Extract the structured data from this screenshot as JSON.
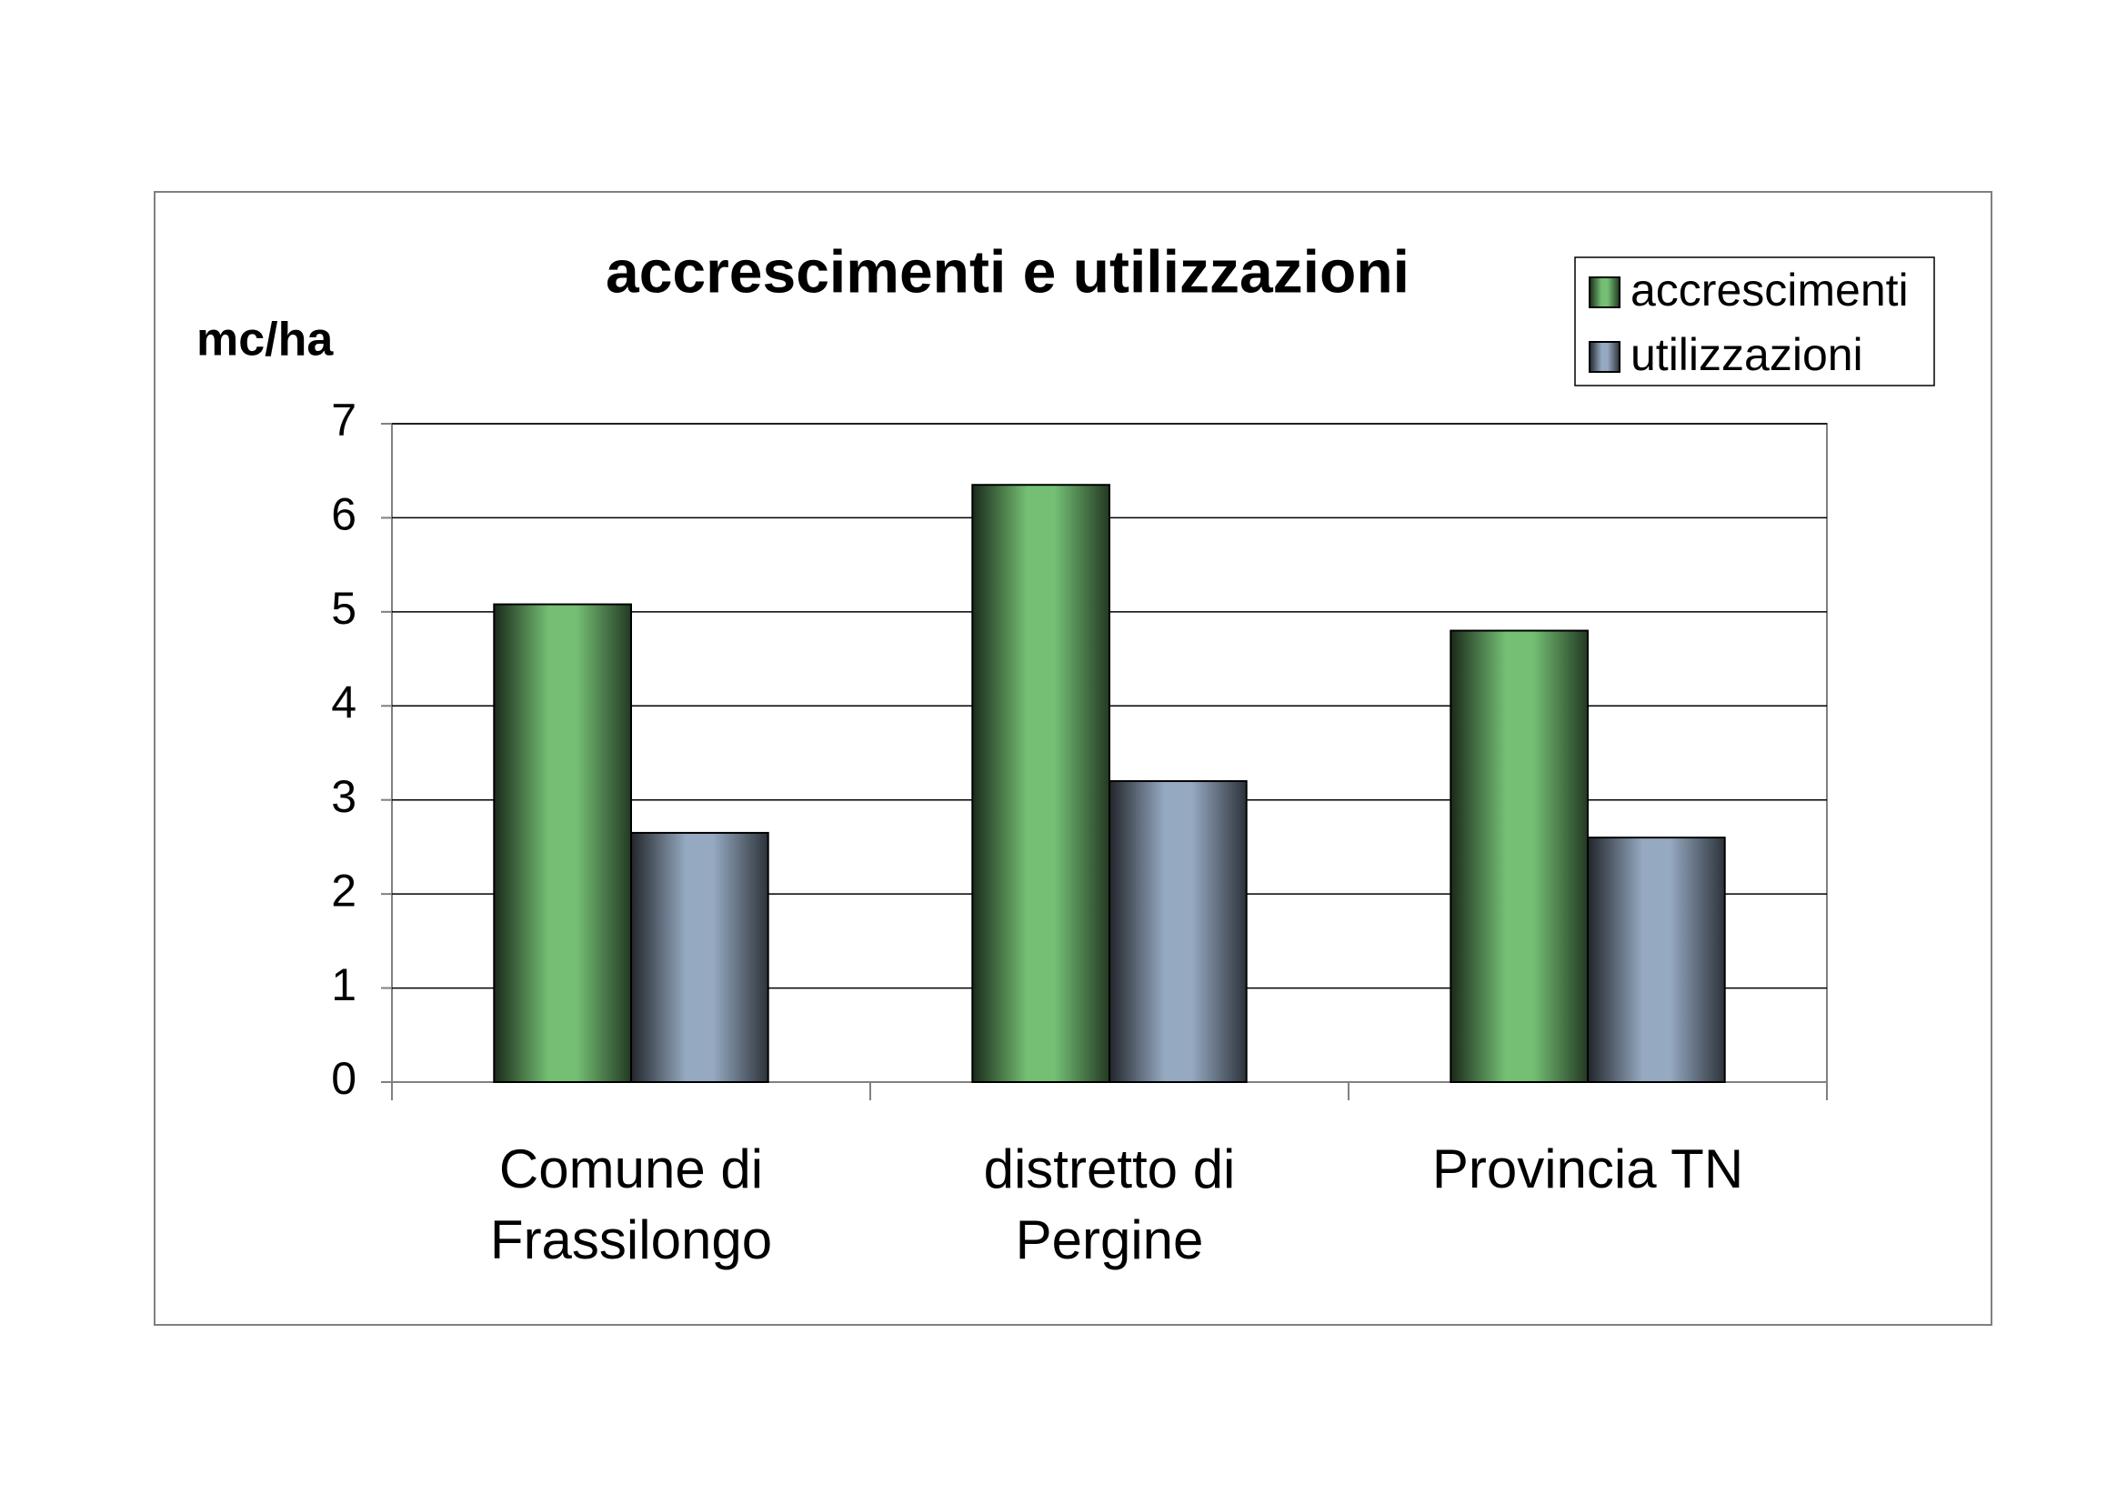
{
  "chart_data": {
    "type": "bar",
    "title": "accrescimenti e utilizzazioni",
    "y_label": "mc/ha",
    "categories": [
      "Comune di Frassilongo",
      "distretto di Pergine",
      "Provincia TN"
    ],
    "series": [
      {
        "name": "accrescimenti",
        "color": "#74bf74",
        "values": [
          5.08,
          6.35,
          4.8
        ]
      },
      {
        "name": "utilizzazioni",
        "color": "#95a9c1",
        "values": [
          2.65,
          3.2,
          2.6
        ]
      }
    ],
    "ylim": [
      0,
      7
    ],
    "yticks": [
      0,
      1,
      2,
      3,
      4,
      5,
      6,
      7
    ],
    "grid": true,
    "legend": "top-right"
  }
}
